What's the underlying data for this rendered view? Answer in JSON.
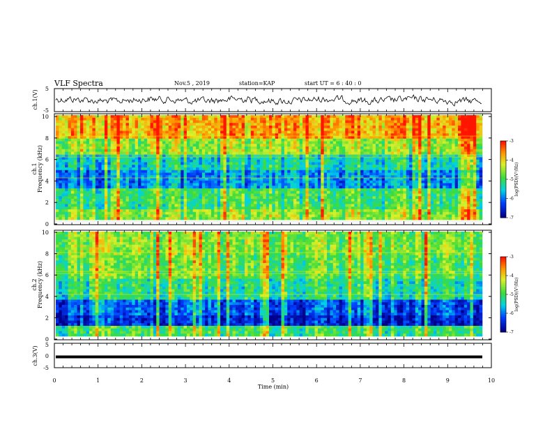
{
  "header": {
    "title": "VLF Spectra",
    "date": "Nov.5  , 2019",
    "station": "station=KAP",
    "start": "start  UT =   6  : 40 : 0"
  },
  "chart_data": [
    {
      "type": "line",
      "panel": "ch1-waveform",
      "ylabel": "ch.1(V)",
      "ylim": [
        -5,
        5
      ],
      "yticks": [
        "5",
        "-5"
      ],
      "xlim": [
        0,
        10
      ],
      "description_color": "#000000"
    },
    {
      "type": "heatmap",
      "panel": "ch1-spectrogram",
      "ylabel": "ch.1\nFrequency  (kHz)",
      "ylim": [
        0,
        10
      ],
      "yticks": [
        "0",
        "2",
        "4",
        "6",
        "8",
        "10"
      ],
      "xlim": [
        0,
        10
      ],
      "colorbar": {
        "label": "log(PSD)(V²/Hz)",
        "range": [
          -7,
          -3
        ],
        "ticks": [
          "-3",
          "-4",
          "-5",
          "-6",
          "-7"
        ]
      }
    },
    {
      "type": "heatmap",
      "panel": "ch2-spectrogram",
      "ylabel": "ch.2\nFrequency  (kHz)",
      "ylim": [
        0,
        10
      ],
      "yticks": [
        "0",
        "2",
        "4",
        "6",
        "8",
        "10"
      ],
      "xlim": [
        0,
        10
      ],
      "colorbar": {
        "label": "log(PSD)(V²/Hz)",
        "range": [
          -7,
          -3
        ],
        "ticks": [
          "-3",
          "-4",
          "-5",
          "-6",
          "-7"
        ]
      }
    },
    {
      "type": "line",
      "panel": "ch3-waveform",
      "ylabel": "ch.3(V)",
      "ylim": [
        -5,
        5
      ],
      "yticks": [
        "5",
        "0",
        "-5"
      ],
      "xlim": [
        0,
        10
      ],
      "constant_value": 0
    }
  ],
  "xaxis": {
    "label": "Time  (min)",
    "ticks": [
      "0",
      "1",
      "2",
      "3",
      "4",
      "5",
      "6",
      "7",
      "8",
      "9",
      "10"
    ]
  },
  "colors": {
    "low": "#00008b",
    "mid_low": "#0055ff",
    "mid": "#00e0e0",
    "green": "#33dd33",
    "yellow": "#ffff00",
    "red": "#ff2200"
  }
}
